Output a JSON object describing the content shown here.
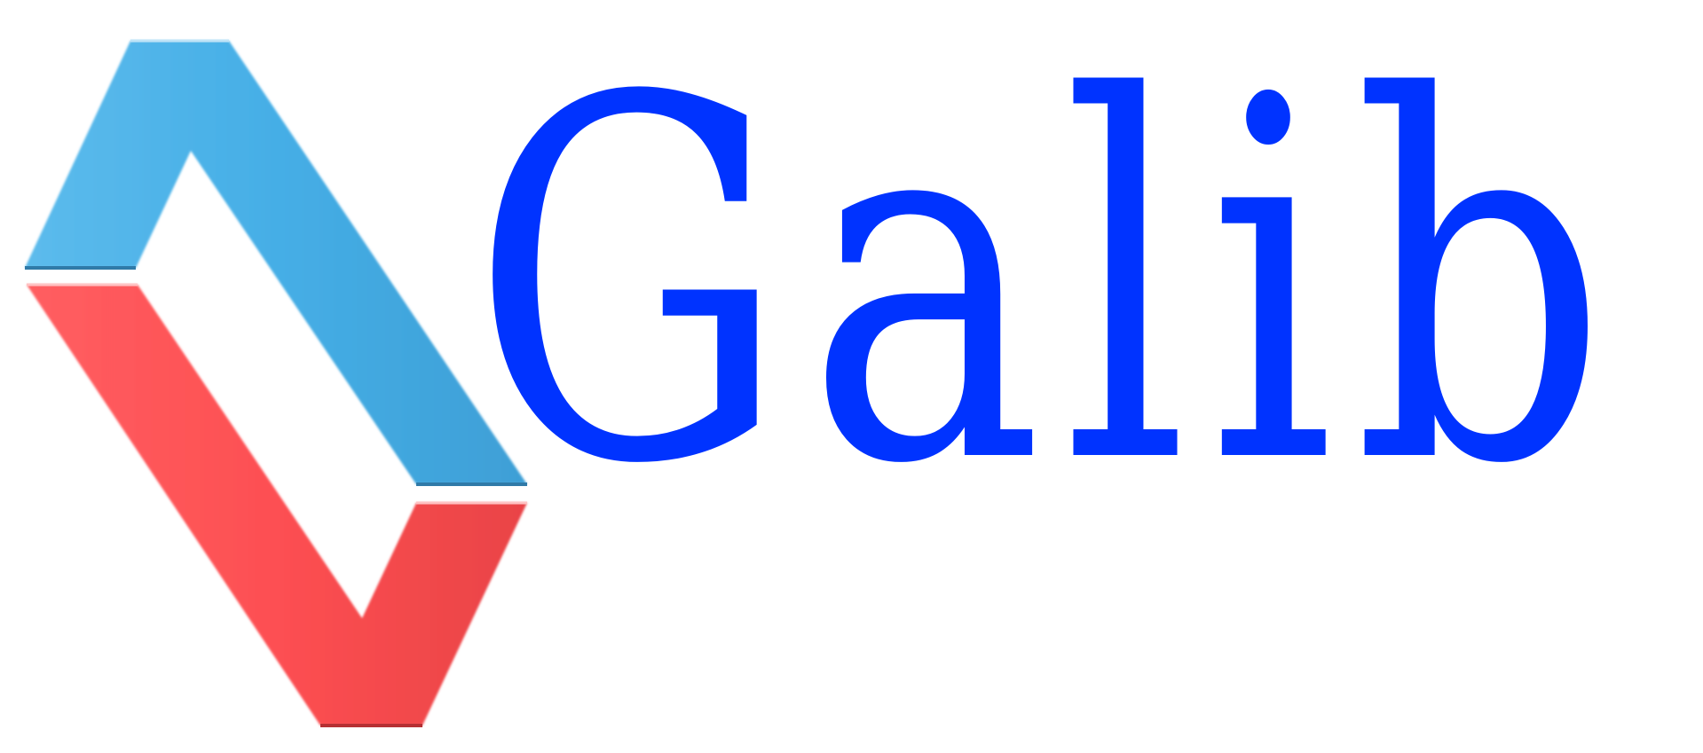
{
  "logo": {
    "wordmark": "Galib",
    "wordmark_color": "#0033ff",
    "mark_top_color": "#45aee6",
    "mark_bottom_color": "#fd4f52",
    "mark_icon": "galib-chevron-logo-icon"
  }
}
